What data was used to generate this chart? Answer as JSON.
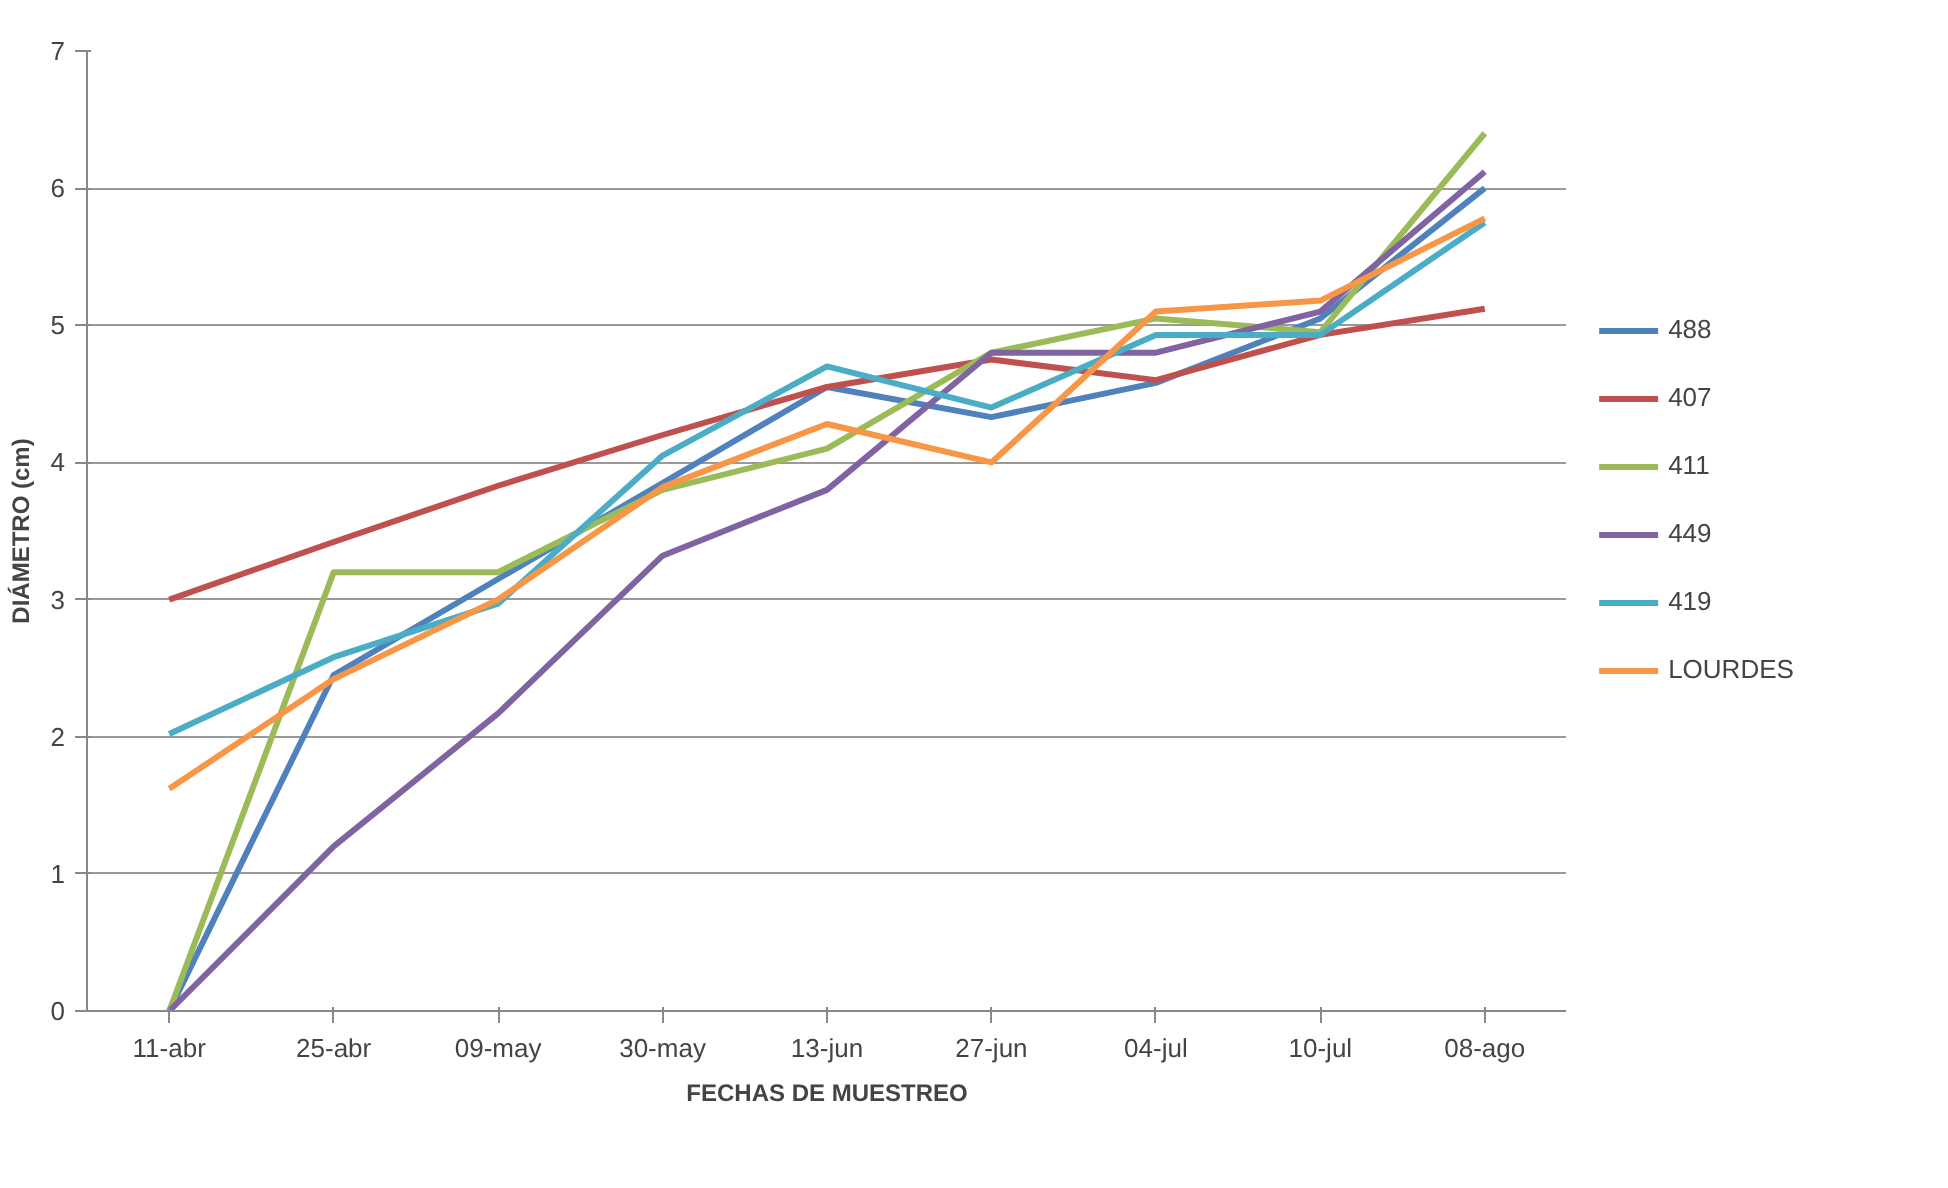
{
  "chart_data": {
    "type": "line",
    "xlabel": "FECHAS DE MUESTREO",
    "ylabel": "DIÁMETRO (cm)",
    "categories": [
      "11-abr",
      "25-abr",
      "09-may",
      "30-may",
      "13-jun",
      "27-jun",
      "04-jul",
      "10-jul",
      "08-ago"
    ],
    "ylim": [
      0,
      7
    ],
    "yticks": [
      0,
      1,
      2,
      3,
      4,
      5,
      6,
      7
    ],
    "grid": "y",
    "legend": "right",
    "marker": "none",
    "line_style": "solid",
    "series": [
      {
        "name": "488",
        "color": "#4f81bd",
        "values": [
          0,
          2.45,
          3.15,
          3.85,
          4.55,
          4.33,
          4.58,
          5.05,
          6.0
        ]
      },
      {
        "name": "407",
        "color": "#c0504d",
        "values": [
          3.0,
          3.42,
          3.83,
          4.2,
          4.55,
          4.75,
          4.6,
          4.93,
          5.12
        ]
      },
      {
        "name": "411",
        "color": "#9bbb59",
        "values": [
          0,
          3.2,
          3.2,
          3.8,
          4.1,
          4.8,
          5.05,
          4.95,
          6.4
        ]
      },
      {
        "name": "449",
        "color": "#8064a2",
        "values": [
          0,
          1.2,
          2.17,
          3.32,
          3.8,
          4.8,
          4.8,
          5.1,
          6.12
        ]
      },
      {
        "name": "419",
        "color": "#4bacc6",
        "values": [
          2.02,
          2.58,
          2.97,
          4.05,
          4.7,
          4.4,
          4.93,
          4.93,
          5.75
        ]
      },
      {
        "name": "LOURDES",
        "color": "#f79646",
        "values": [
          1.62,
          2.42,
          3.0,
          3.82,
          4.28,
          4.0,
          5.1,
          5.18,
          5.78
        ]
      }
    ]
  }
}
